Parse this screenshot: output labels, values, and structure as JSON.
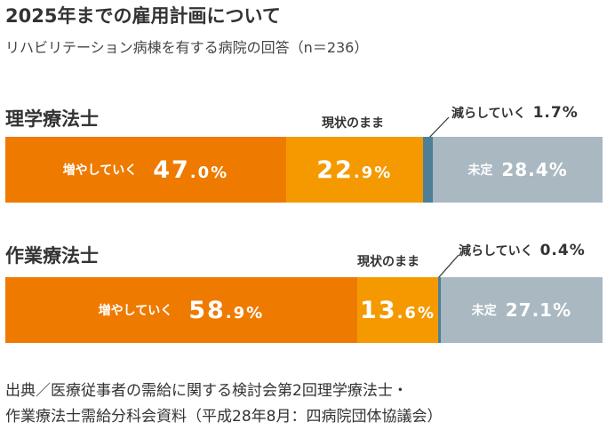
{
  "title": "2025年までの雇用計画について",
  "subtitle": "リハビリテーション病棟を有する病院の回答（n＝236）",
  "colors": {
    "increase": "#ef7a00",
    "current": "#f49a00",
    "decrease": "#4e7f97",
    "undecided": "#a9b8c1"
  },
  "chart_data": [
    {
      "type": "bar",
      "title": "理学療法士",
      "series": [
        {
          "name": "増やしていく",
          "value": 47.0,
          "integer": "47",
          "decimal": ".0%"
        },
        {
          "name": "現状のまま",
          "value": 22.9,
          "integer": "22",
          "decimal": ".9%"
        },
        {
          "name": "減らしていく",
          "value": 1.7,
          "display": "1.7%"
        },
        {
          "name": "未定",
          "value": 28.4,
          "display": "28.4%"
        }
      ]
    },
    {
      "type": "bar",
      "title": "作業療法士",
      "series": [
        {
          "name": "増やしていく",
          "value": 58.9,
          "integer": "58",
          "decimal": ".9%"
        },
        {
          "name": "現状のまま",
          "value": 13.6,
          "integer": "13",
          "decimal": ".6%"
        },
        {
          "name": "減らしていく",
          "value": 0.4,
          "display": "0.4%"
        },
        {
          "name": "未定",
          "value": 27.1,
          "display": "27.1%"
        }
      ]
    }
  ],
  "source": {
    "line1": "出典／医療従事者の需給に関する検討会第2回理学療法士・",
    "line2": "作業療法士需給分科会資料（平成28年8月：四病院団体協議会）"
  }
}
